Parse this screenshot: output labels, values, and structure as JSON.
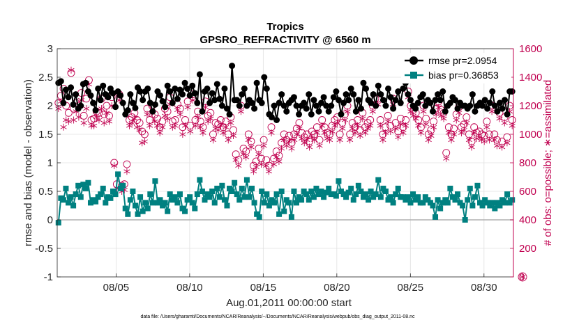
{
  "chart_data": {
    "type": "line",
    "title": "Tropics",
    "subtitle": "GPSRO_REFRACTIVITY @ 6560 m",
    "xlabel": "Aug.01,2011 00:00:00 start",
    "ylabel_left": "rmse and bias (model - observation)",
    "ylabel_right": "# of obs: o=possible; ∗=assimilated",
    "footnote": "data file: /Users/gharamti/Documents/NCAR/Reanalysis/~/Documents/NCAR/Reanalysis/webpub/obs_diag_output_2011-08.nc",
    "xlim": [
      1,
      32
    ],
    "ylim_left": [
      -1,
      3
    ],
    "ylim_right": [
      0,
      1600
    ],
    "x_ticks": [
      5,
      10,
      15,
      20,
      25,
      30
    ],
    "x_tick_labels": [
      "08/05",
      "08/10",
      "08/15",
      "08/20",
      "08/25",
      "08/30"
    ],
    "y_left_ticks": [
      -1,
      -0.5,
      0,
      0.5,
      1,
      1.5,
      2,
      2.5,
      3
    ],
    "y_left_tick_labels": [
      "-1",
      "-0.5",
      "0",
      "0.5",
      "1",
      "1.5",
      "2",
      "2.5",
      "3"
    ],
    "y_right_ticks": [
      0,
      200,
      400,
      600,
      800,
      1000,
      1200,
      1400,
      1600
    ],
    "y_right_tick_labels": [
      "0",
      "200",
      "400",
      "600",
      "800",
      "1000",
      "1200",
      "1400",
      "1600"
    ],
    "legend": [
      {
        "label": "rmse pr=2.0954",
        "color": "#000000"
      },
      {
        "label": "bias pr=0.36853",
        "color": "#008080"
      }
    ],
    "legend_position": "top-right",
    "colors": {
      "rmse": "#000000",
      "bias": "#008080",
      "counts": "#c0004f",
      "grid": "#e0e0e0",
      "zero": "#b0b0b0"
    },
    "series": [
      {
        "name": "rmse",
        "values": [
          2.4,
          2.43,
          2.05,
          2.28,
          2.15,
          2.32,
          2.02,
          2.2,
          1.95,
          2.0,
          2.38,
          2.4,
          2.25,
          2.18,
          2.05,
          1.92,
          2.3,
          2.1,
          2.35,
          2.2,
          2.15,
          2.3,
          2.22,
          1.98,
          2.25,
          2.18,
          2.05,
          1.85,
          1.92,
          2.2,
          2.05,
          1.96,
          2.32,
          2.25,
          2.1,
          2.25,
          2.3,
          2.05,
          1.9,
          2.02,
          2.25,
          2.18,
          2.08,
          1.98,
          2.35,
          2.25,
          2.05,
          2.3,
          2.12,
          2.28,
          2.2,
          2.4,
          2.3,
          2.18,
          2.35,
          2.22,
          2.05,
          2.55,
          1.9,
          2.25,
          2.3,
          2.05,
          2.22,
          2.1,
          2.38,
          2.12,
          2.0,
          2.3,
          1.95,
          1.85,
          2.7,
          2.1,
          2.1,
          2.0,
          2.2,
          2.3,
          2.0,
          2.1,
          2.05,
          1.95,
          2.4,
          2.1,
          2.05,
          2.5,
          2.3,
          1.85,
          1.8,
          2.0,
          1.75,
          2.05,
          2.2,
          2.0,
          1.9,
          2.05,
          2.1,
          2.15,
          2.0,
          1.85,
          2.0,
          2.05,
          1.95,
          2.2,
          1.85,
          2.1,
          2.0,
          1.9,
          2.05,
          2.15,
          2.0,
          1.9,
          2.0,
          2.15,
          2.25,
          2.1,
          1.85,
          2.05,
          2.2,
          2.1,
          2.3,
          2.2,
          1.9,
          2.1,
          1.95,
          2.4,
          2.3,
          2.1,
          2.05,
          2.2,
          2.0,
          2.35,
          2.2,
          2.1,
          2.0,
          2.3,
          2.15,
          1.95,
          2.1,
          2.25,
          2.05,
          2.3,
          2.4,
          2.2,
          2.1,
          2.0,
          1.95,
          2.05,
          2.15,
          2.2,
          2.0,
          2.1,
          2.05,
          1.9,
          2.1,
          2.2,
          2.1,
          2.25,
          1.9,
          2.0,
          2.05,
          2.15,
          2.1,
          1.95,
          2.05,
          2.0,
          2.0,
          1.95,
          2.0,
          2.2,
          1.9,
          2.0,
          2.05,
          2.0,
          2.1,
          1.95,
          2.05,
          2.25,
          2.0,
          1.9,
          2.05,
          1.95,
          2.1,
          1.85,
          2.25,
          2.25
        ]
      },
      {
        "name": "bias",
        "values": [
          -0.05,
          0.38,
          0.35,
          0.55,
          0.3,
          0.4,
          0.25,
          0.45,
          0.6,
          0.4,
          0.62,
          0.55,
          0.65,
          0.3,
          0.35,
          0.32,
          0.4,
          0.45,
          0.55,
          0.3,
          0.4,
          0.38,
          0.5,
          0.45,
          0.8,
          0.55,
          0.6,
          0.2,
          0.1,
          0.35,
          0.5,
          0.25,
          0.1,
          0.4,
          0.15,
          0.3,
          0.2,
          0.45,
          0.3,
          0.68,
          0.3,
          0.35,
          0.25,
          0.3,
          0.15,
          0.45,
          0.35,
          0.4,
          0.3,
          0.45,
          0.2,
          0.15,
          0.35,
          0.4,
          0.3,
          0.2,
          0.45,
          0.7,
          0.5,
          0.35,
          0.45,
          0.4,
          0.5,
          0.3,
          0.55,
          0.4,
          0.6,
          0.35,
          0.25,
          0.55,
          0.5,
          0.65,
          0.45,
          0.35,
          0.55,
          0.4,
          0.7,
          0.4,
          0.55,
          0.3,
          0.1,
          0.05,
          0.5,
          0.3,
          0.45,
          0.25,
          0.35,
          0.3,
          0.45,
          0.1,
          0.5,
          0.15,
          0.35,
          0.3,
          0.05,
          0.5,
          0.3,
          0.4,
          0.35,
          0.5,
          0.45,
          0.35,
          0.5,
          0.4,
          0.55,
          0.45,
          0.5,
          0.4,
          0.48,
          0.55,
          0.45,
          0.45,
          0.42,
          0.68,
          0.5,
          0.45,
          0.4,
          0.48,
          0.55,
          0.35,
          0.45,
          0.6,
          0.5,
          0.4,
          0.45,
          0.35,
          0.5,
          0.4,
          0.45,
          0.7,
          0.4,
          0.55,
          0.5,
          0.35,
          0.4,
          0.3,
          0.45,
          0.55,
          0.4,
          0.4,
          0.35,
          0.4,
          0.3,
          0.45,
          0.35,
          0.4,
          0.3,
          0.3,
          0.4,
          0.35,
          0.3,
          0.25,
          0.05,
          0.35,
          0.2,
          0.3,
          0.35,
          0.3,
          0.55,
          0.4,
          0.35,
          0.45,
          0.3,
          0.25,
          0.0,
          0.35,
          0.55,
          0.25,
          0.4,
          0.6,
          0.3,
          0.25,
          0.35,
          0.3,
          0.25,
          0.3,
          0.2,
          0.3,
          0.25,
          0.35,
          0.3,
          0.45,
          0.3,
          0.35
        ]
      },
      {
        "name": "obs_possible",
        "values": [
          1220,
          1270,
          1320,
          1200,
          1150,
          1430,
          1180,
          1220,
          1200,
          1290,
          1130,
          1250,
          1380,
          1100,
          1110,
          1160,
          1150,
          1250,
          1140,
          1200,
          1130,
          1260,
          800,
          650,
          1280,
          640,
          650,
          790,
          1100,
          1120,
          1150,
          1100,
          1080,
          1020,
          1000,
          1180,
          1100,
          1200,
          1140,
          1110,
          1050,
          1090,
          1180,
          1160,
          1260,
          1090,
          1100,
          1210,
          1180,
          1050,
          1100,
          1230,
          1060,
          1280,
          1100,
          1160,
          1090,
          1050,
          1230,
          1130,
          1150,
          1000,
          1080,
          1070,
          1100,
          1050,
          1090,
          1000,
          1120,
          1030,
          860,
          820,
          1200,
          900,
          880,
          1000,
          950,
          780,
          810,
          900,
          830,
          960,
          820,
          780,
          1050,
          830,
          880,
          850,
          940,
          1000,
          960,
          990,
          940,
          1000,
          1040,
          1080,
          1010,
          980,
          1000,
          950,
          1020,
          1000,
          1050,
          960,
          1100,
          1050,
          1010,
          1000,
          1060,
          1100,
          1120,
          1000,
          1080,
          1140,
          1200,
          1000,
          1080,
          1050,
          1100,
          1030,
          1150,
          1050,
          1080,
          1100,
          1200,
          1250,
          1250,
          1100,
          1000,
          1050,
          1130,
          1060,
          1250,
          1080,
          1020,
          1110,
          1050,
          1100,
          1300,
          1200,
          1170,
          1150,
          1100,
          1050,
          1200,
          1110,
          1000,
          1030,
          1090,
          1180,
          1230,
          1170,
          1150,
          870,
          1050,
          1000,
          1040,
          1140,
          1190,
          1050,
          1070,
          1120,
          1000,
          950,
          1050,
          1010,
          1020,
          1000,
          990,
          1090,
          1000,
          1200,
          1000,
          960,
          1150,
          950,
          1120,
          980,
          1200,
          1100
        ]
      },
      {
        "name": "obs_assimilated",
        "values": [
          1180,
          1230,
          1050,
          1100,
          1090,
          1450,
          1100,
          1160,
          1120,
          1240,
          1080,
          1180,
          1350,
          1060,
          1060,
          1120,
          1100,
          1180,
          1080,
          1150,
          1090,
          1200,
          780,
          620,
          1240,
          600,
          610,
          740,
          1060,
          1080,
          1110,
          1050,
          1030,
          940,
          950,
          1140,
          1060,
          1150,
          1090,
          1060,
          1010,
          1050,
          1130,
          1110,
          1210,
          1050,
          1060,
          1170,
          1140,
          1000,
          1060,
          1190,
          1020,
          1240,
          1060,
          1120,
          1050,
          1010,
          1190,
          1090,
          1110,
          960,
          1040,
          1030,
          1060,
          1010,
          1050,
          960,
          1080,
          990,
          820,
          780,
          1160,
          860,
          840,
          960,
          910,
          740,
          770,
          860,
          790,
          920,
          780,
          740,
          1010,
          790,
          840,
          810,
          900,
          960,
          920,
          950,
          900,
          960,
          1000,
          1040,
          970,
          940,
          960,
          910,
          980,
          960,
          1010,
          920,
          1060,
          1010,
          970,
          960,
          1020,
          1060,
          1080,
          960,
          1040,
          1100,
          1160,
          960,
          1040,
          1010,
          1060,
          990,
          1110,
          1010,
          1040,
          1060,
          1160,
          1210,
          1210,
          1060,
          960,
          1010,
          1090,
          1020,
          1210,
          1040,
          980,
          1070,
          1010,
          1060,
          1260,
          1160,
          1130,
          1110,
          1060,
          1010,
          1160,
          1070,
          960,
          990,
          1050,
          1140,
          1190,
          1130,
          1110,
          830,
          1010,
          960,
          1000,
          1100,
          1150,
          1010,
          1030,
          1080,
          960,
          910,
          1010,
          970,
          980,
          960,
          950,
          1050,
          960,
          1160,
          960,
          920,
          1110,
          910,
          1080,
          940,
          1160,
          1060
        ]
      }
    ]
  }
}
